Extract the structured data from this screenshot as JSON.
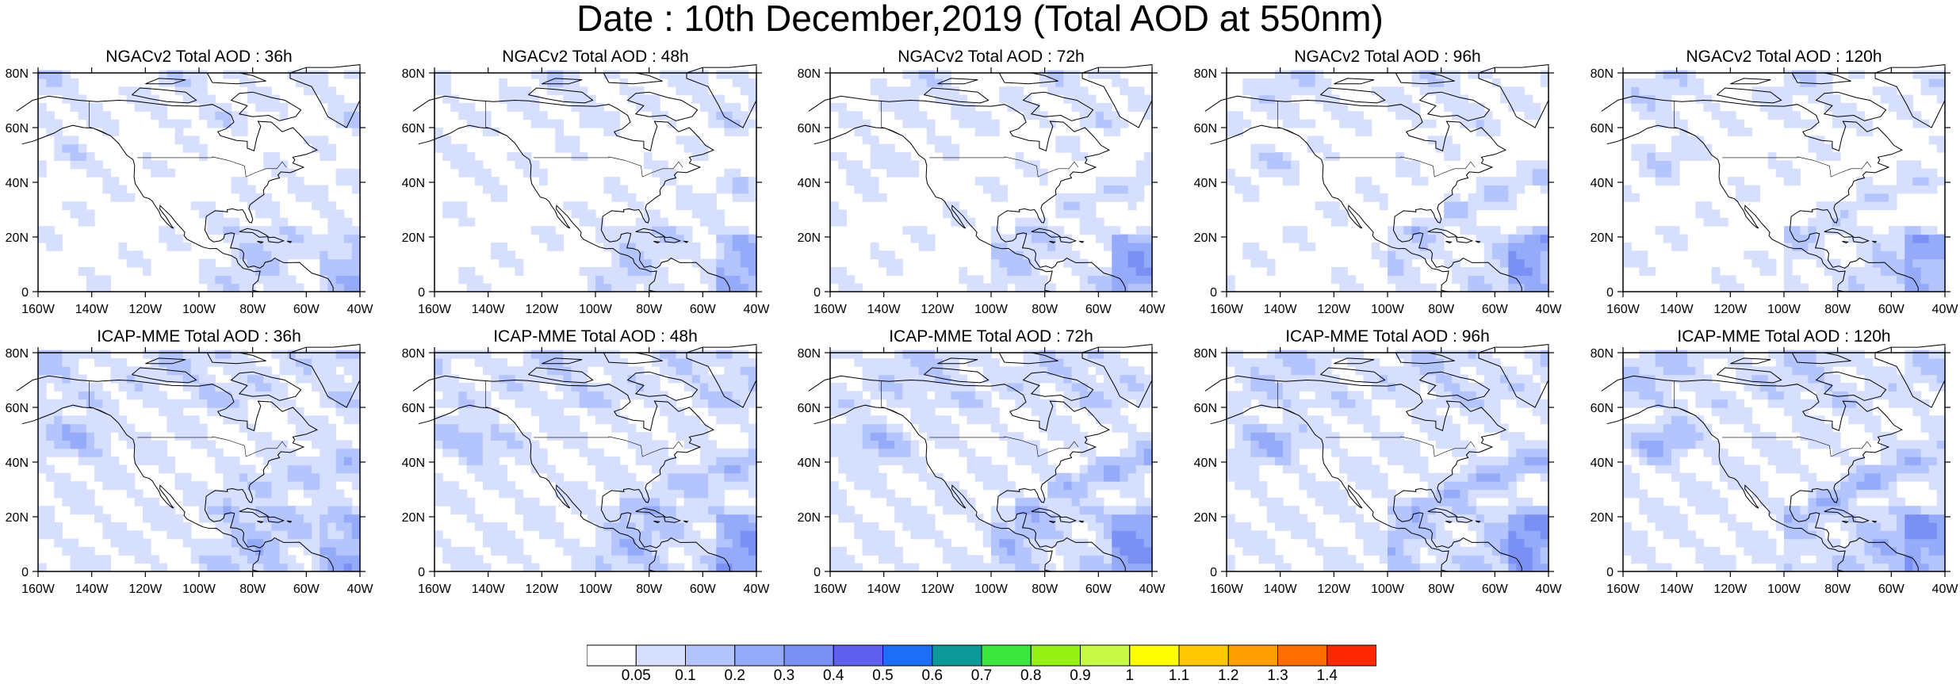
{
  "title": "Date : 10th December,2019 (Total AOD at 550nm)",
  "panels": [
    {
      "title": "NGACv2 Total AOD : 36h",
      "model": "NGACv2",
      "lead": "36h"
    },
    {
      "title": "NGACv2 Total AOD : 48h",
      "model": "NGACv2",
      "lead": "48h"
    },
    {
      "title": "NGACv2 Total AOD : 72h",
      "model": "NGACv2",
      "lead": "72h"
    },
    {
      "title": "NGACv2 Total AOD : 96h",
      "model": "NGACv2",
      "lead": "96h"
    },
    {
      "title": "NGACv2 Total AOD : 120h",
      "model": "NGACv2",
      "lead": "120h"
    },
    {
      "title": "ICAP-MME Total AOD : 36h",
      "model": "ICAP-MME",
      "lead": "36h"
    },
    {
      "title": "ICAP-MME Total AOD : 48h",
      "model": "ICAP-MME",
      "lead": "48h"
    },
    {
      "title": "ICAP-MME Total AOD : 72h",
      "model": "ICAP-MME",
      "lead": "72h"
    },
    {
      "title": "ICAP-MME Total AOD : 96h",
      "model": "ICAP-MME",
      "lead": "96h"
    },
    {
      "title": "ICAP-MME Total AOD : 120h",
      "model": "ICAP-MME",
      "lead": "120h"
    }
  ],
  "axes": {
    "lon_labels": [
      "160W",
      "140W",
      "120W",
      "100W",
      "80W",
      "60W",
      "40W"
    ],
    "lat_labels": [
      "0",
      "20N",
      "40N",
      "60N",
      "80N"
    ],
    "lon_range": [
      -160,
      -40
    ],
    "lat_range": [
      0,
      80
    ]
  },
  "colorbar": {
    "labels": [
      "0.05",
      "0.1",
      "0.2",
      "0.3",
      "0.4",
      "0.5",
      "0.6",
      "0.7",
      "0.8",
      "0.9",
      "1",
      "1.1",
      "1.2",
      "1.3",
      "1.4"
    ],
    "colors": [
      "#ffffff",
      "#d6dffe",
      "#b4c4fd",
      "#95abf9",
      "#7a90f5",
      "#6060ee",
      "#1e6ef5",
      "#0d9999",
      "#3ce63c",
      "#96f014",
      "#c8fa46",
      "#ffff00",
      "#ffc800",
      "#ffa000",
      "#ff6e00",
      "#ff2800"
    ]
  }
}
